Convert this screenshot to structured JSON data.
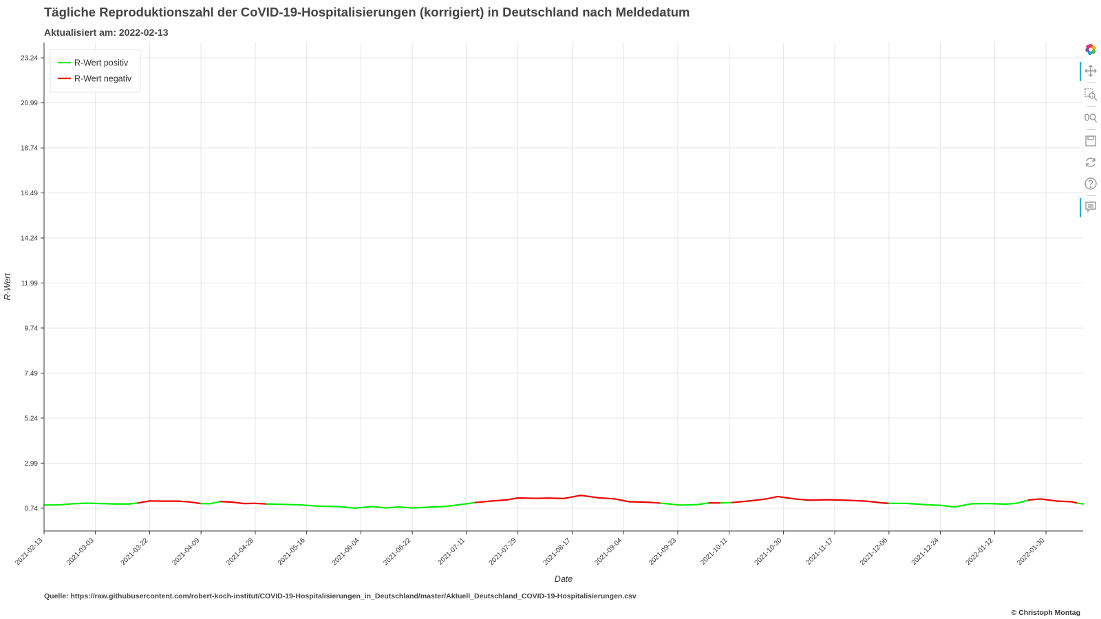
{
  "header": {
    "title": "Tägliche Reproduktionszahl der CoVID-19-Hospitalisierungen (korrigiert) in Deutschland nach Meldedatum",
    "subtitle": "Aktualisiert am: 2022-02-13"
  },
  "footer": {
    "source": "Quelle: https://raw.githubusercontent.com/robert-koch-institut/COVID-19-Hospitalisierungen_in_Deutschland/master/Aktuell_Deutschland_COVID-19-Hospitalisierungen.csv",
    "copyright": "© Christoph Montag"
  },
  "toolbar": {
    "items": [
      {
        "icon": "bokeh-logo-icon",
        "active": false
      },
      {
        "icon": "pan-icon",
        "active": true
      },
      {
        "icon": "box-zoom-icon",
        "active": false
      },
      {
        "icon": "wheel-zoom-icon",
        "active": false
      },
      {
        "icon": "save-icon",
        "active": false
      },
      {
        "icon": "reset-icon",
        "active": false
      },
      {
        "icon": "help-icon",
        "active": false
      },
      {
        "icon": "hover-icon",
        "active": true
      }
    ]
  },
  "chart_data": {
    "type": "line",
    "title": "Tägliche Reproduktionszahl der CoVID-19-Hospitalisierungen (korrigiert) in Deutschland nach Meldedatum",
    "subtitle": "Aktualisiert am: 2022-02-13",
    "xlabel": "Date",
    "ylabel": "R-Wert",
    "xlim": [
      "2021-02-13",
      "2022-02-12"
    ],
    "ylim": [
      -0.4,
      24.0
    ],
    "yticks": [
      "0.74",
      "2.99",
      "5.24",
      "7.49",
      "9.74",
      "11.99",
      "14.24",
      "16.49",
      "18.74",
      "20.99",
      "23.24"
    ],
    "xticks": [
      "2021-02-13",
      "2021-03-03",
      "2021-03-22",
      "2021-04-09",
      "2021-04-28",
      "2021-05-16",
      "2021-06-04",
      "2021-06-22",
      "2021-07-11",
      "2021-07-29",
      "2021-08-17",
      "2021-09-04",
      "2021-09-23",
      "2021-10-11",
      "2021-10-30",
      "2021-11-17",
      "2021-12-06",
      "2021-12-24",
      "2022-01-12",
      "2022-01-30"
    ],
    "grid": true,
    "legend_position": "top-left",
    "colors": {
      "positive": "#00ee00",
      "negative": "#ee0000",
      "grid": "#e5e5e5"
    },
    "series": [
      {
        "name": "R-Wert positiv",
        "color": "#00ee00"
      },
      {
        "name": "R-Wert negativ",
        "color": "#ee0000"
      }
    ],
    "points": [
      {
        "date": "2021-02-13",
        "value": 0.9,
        "sign": "positiv"
      },
      {
        "date": "2021-02-18",
        "value": 0.9,
        "sign": "positiv"
      },
      {
        "date": "2021-02-23",
        "value": 0.96,
        "sign": "positiv"
      },
      {
        "date": "2021-02-28",
        "value": 0.99,
        "sign": "positiv"
      },
      {
        "date": "2021-03-05",
        "value": 0.97,
        "sign": "positiv"
      },
      {
        "date": "2021-03-10",
        "value": 0.95,
        "sign": "positiv"
      },
      {
        "date": "2021-03-15",
        "value": 0.95,
        "sign": "positiv"
      },
      {
        "date": "2021-03-18",
        "value": 1.0,
        "sign": "negativ"
      },
      {
        "date": "2021-03-22",
        "value": 1.1,
        "sign": "negativ"
      },
      {
        "date": "2021-03-27",
        "value": 1.09,
        "sign": "negativ"
      },
      {
        "date": "2021-04-01",
        "value": 1.09,
        "sign": "negativ"
      },
      {
        "date": "2021-04-05",
        "value": 1.05,
        "sign": "negativ"
      },
      {
        "date": "2021-04-09",
        "value": 0.97,
        "sign": "positiv"
      },
      {
        "date": "2021-04-12",
        "value": 0.96,
        "sign": "positiv"
      },
      {
        "date": "2021-04-16",
        "value": 1.07,
        "sign": "negativ"
      },
      {
        "date": "2021-04-20",
        "value": 1.04,
        "sign": "negativ"
      },
      {
        "date": "2021-04-24",
        "value": 0.97,
        "sign": "negativ"
      },
      {
        "date": "2021-04-28",
        "value": 0.98,
        "sign": "negativ"
      },
      {
        "date": "2021-05-02",
        "value": 0.95,
        "sign": "positiv"
      },
      {
        "date": "2021-05-07",
        "value": 0.93,
        "sign": "positiv"
      },
      {
        "date": "2021-05-14",
        "value": 0.9,
        "sign": "positiv"
      },
      {
        "date": "2021-05-20",
        "value": 0.84,
        "sign": "positiv"
      },
      {
        "date": "2021-05-27",
        "value": 0.82,
        "sign": "positiv"
      },
      {
        "date": "2021-06-02",
        "value": 0.74,
        "sign": "positiv"
      },
      {
        "date": "2021-06-08",
        "value": 0.82,
        "sign": "positiv"
      },
      {
        "date": "2021-06-13",
        "value": 0.75,
        "sign": "positiv"
      },
      {
        "date": "2021-06-17",
        "value": 0.8,
        "sign": "positiv"
      },
      {
        "date": "2021-06-22",
        "value": 0.75,
        "sign": "positiv"
      },
      {
        "date": "2021-06-28",
        "value": 0.79,
        "sign": "positiv"
      },
      {
        "date": "2021-07-04",
        "value": 0.83,
        "sign": "positiv"
      },
      {
        "date": "2021-07-11",
        "value": 0.96,
        "sign": "positiv"
      },
      {
        "date": "2021-07-14",
        "value": 1.02,
        "sign": "negativ"
      },
      {
        "date": "2021-07-20",
        "value": 1.1,
        "sign": "negativ"
      },
      {
        "date": "2021-07-25",
        "value": 1.15,
        "sign": "negativ"
      },
      {
        "date": "2021-07-29",
        "value": 1.25,
        "sign": "negativ"
      },
      {
        "date": "2021-08-04",
        "value": 1.23,
        "sign": "negativ"
      },
      {
        "date": "2021-08-09",
        "value": 1.24,
        "sign": "negativ"
      },
      {
        "date": "2021-08-14",
        "value": 1.22,
        "sign": "negativ"
      },
      {
        "date": "2021-08-20",
        "value": 1.38,
        "sign": "negativ"
      },
      {
        "date": "2021-08-26",
        "value": 1.26,
        "sign": "negativ"
      },
      {
        "date": "2021-09-01",
        "value": 1.2,
        "sign": "negativ"
      },
      {
        "date": "2021-09-06",
        "value": 1.06,
        "sign": "negativ"
      },
      {
        "date": "2021-09-13",
        "value": 1.03,
        "sign": "negativ"
      },
      {
        "date": "2021-09-17",
        "value": 0.99,
        "sign": "positiv"
      },
      {
        "date": "2021-09-24",
        "value": 0.89,
        "sign": "positiv"
      },
      {
        "date": "2021-09-30",
        "value": 0.92,
        "sign": "positiv"
      },
      {
        "date": "2021-10-04",
        "value": 1.0,
        "sign": "negativ"
      },
      {
        "date": "2021-10-08",
        "value": 1.0,
        "sign": "positiv"
      },
      {
        "date": "2021-10-12",
        "value": 1.02,
        "sign": "negativ"
      },
      {
        "date": "2021-10-18",
        "value": 1.1,
        "sign": "negativ"
      },
      {
        "date": "2021-10-24",
        "value": 1.2,
        "sign": "negativ"
      },
      {
        "date": "2021-10-28",
        "value": 1.32,
        "sign": "negativ"
      },
      {
        "date": "2021-11-03",
        "value": 1.2,
        "sign": "negativ"
      },
      {
        "date": "2021-11-08",
        "value": 1.14,
        "sign": "negativ"
      },
      {
        "date": "2021-11-15",
        "value": 1.16,
        "sign": "negativ"
      },
      {
        "date": "2021-11-22",
        "value": 1.13,
        "sign": "negativ"
      },
      {
        "date": "2021-11-28",
        "value": 1.09,
        "sign": "negativ"
      },
      {
        "date": "2021-12-03",
        "value": 1.01,
        "sign": "negativ"
      },
      {
        "date": "2021-12-06",
        "value": 0.98,
        "sign": "positiv"
      },
      {
        "date": "2021-12-12",
        "value": 0.98,
        "sign": "positiv"
      },
      {
        "date": "2021-12-18",
        "value": 0.92,
        "sign": "positiv"
      },
      {
        "date": "2021-12-24",
        "value": 0.88,
        "sign": "positiv"
      },
      {
        "date": "2021-12-29",
        "value": 0.8,
        "sign": "positiv"
      },
      {
        "date": "2022-01-04",
        "value": 0.96,
        "sign": "positiv"
      },
      {
        "date": "2022-01-10",
        "value": 0.97,
        "sign": "positiv"
      },
      {
        "date": "2022-01-16",
        "value": 0.94,
        "sign": "positiv"
      },
      {
        "date": "2022-01-20",
        "value": 0.99,
        "sign": "positiv"
      },
      {
        "date": "2022-01-24",
        "value": 1.15,
        "sign": "negativ"
      },
      {
        "date": "2022-01-28",
        "value": 1.2,
        "sign": "negativ"
      },
      {
        "date": "2022-02-03",
        "value": 1.09,
        "sign": "negativ"
      },
      {
        "date": "2022-02-08",
        "value": 1.06,
        "sign": "negativ"
      },
      {
        "date": "2022-02-10",
        "value": 0.99,
        "sign": "positiv"
      },
      {
        "date": "2022-02-12",
        "value": 0.95,
        "sign": "positiv"
      }
    ]
  }
}
